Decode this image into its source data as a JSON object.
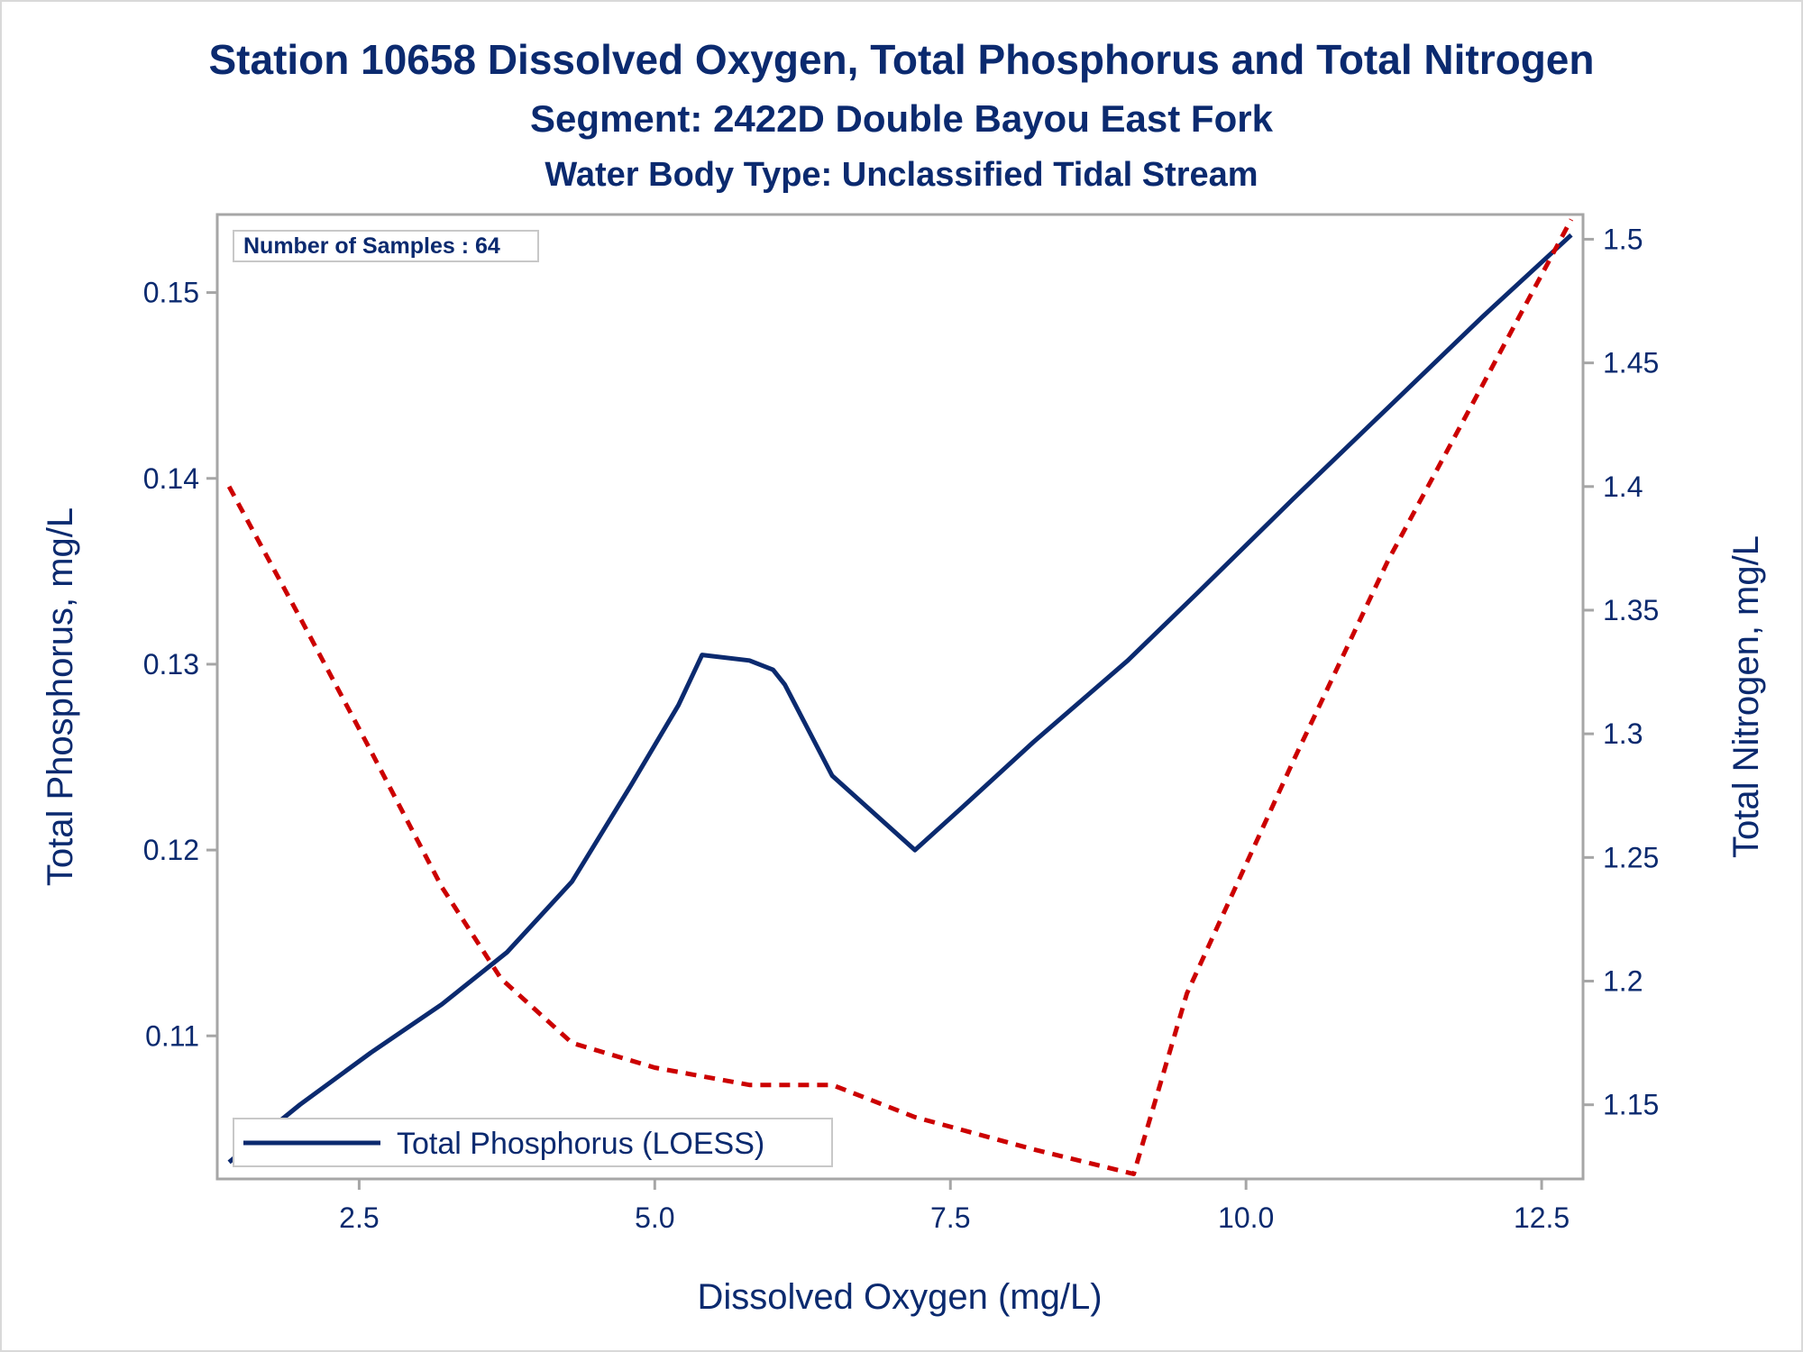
{
  "chart_data": {
    "type": "line",
    "title": "Station 10658  Dissolved Oxygen, Total Phosphorus and Total Nitrogen",
    "subtitle": "Segment: 2422D  Double Bayou East Fork",
    "subtitle2": "Water Body Type: Unclassified Tidal Stream",
    "xlabel": "Dissolved Oxygen (mg/L)",
    "ylabel": "Total Phosphorus, mg/L",
    "y2label": "Total Nitrogen, mg/L",
    "xlim": [
      1.3,
      12.85
    ],
    "ylim": [
      0.1023,
      0.1542
    ],
    "y2lim": [
      1.12,
      1.51
    ],
    "xticks": [
      "2.5",
      "5.0",
      "7.5",
      "10.0",
      "12.5"
    ],
    "yticks": [
      "0.11",
      "0.12",
      "0.13",
      "0.14",
      "0.15"
    ],
    "y2ticks": [
      "1.15",
      "1.2",
      "1.25",
      "1.3",
      "1.35",
      "1.4",
      "1.45",
      "1.5"
    ],
    "annotation": "Number of Samples : 64",
    "legend": {
      "label": "Total Phosphorus (LOESS)",
      "placement": "bottom-left"
    },
    "grid": false,
    "series": [
      {
        "name": "Total Phosphorus (LOESS)",
        "axis": "left",
        "color": "#0b2a6f",
        "style": "solid",
        "x": [
          1.4,
          2.0,
          2.6,
          3.2,
          3.75,
          4.3,
          4.8,
          5.2,
          5.4,
          5.8,
          6.0,
          6.1,
          6.5,
          7.2,
          7.6,
          8.2,
          9.0,
          9.6,
          10.4,
          11.2,
          12.0,
          12.75
        ],
        "y": [
          0.1032,
          0.1063,
          0.1091,
          0.1117,
          0.1145,
          0.1183,
          0.1235,
          0.1278,
          0.1305,
          0.1302,
          0.1297,
          0.1289,
          0.124,
          0.12,
          0.1223,
          0.1258,
          0.1302,
          0.1339,
          0.1389,
          0.1438,
          0.1487,
          0.1531
        ]
      },
      {
        "axis": "right",
        "color": "#cc0000",
        "style": "dashed",
        "x": [
          1.4,
          2.0,
          2.6,
          3.2,
          3.7,
          4.3,
          5.0,
          5.8,
          6.5,
          7.2,
          8.2,
          9.05,
          9.5,
          10.4,
          11.2,
          12.0,
          12.75
        ],
        "y": [
          1.4,
          1.347,
          1.293,
          1.238,
          1.201,
          1.175,
          1.165,
          1.158,
          1.158,
          1.145,
          1.132,
          1.122,
          1.195,
          1.289,
          1.37,
          1.441,
          1.508
        ]
      }
    ]
  }
}
